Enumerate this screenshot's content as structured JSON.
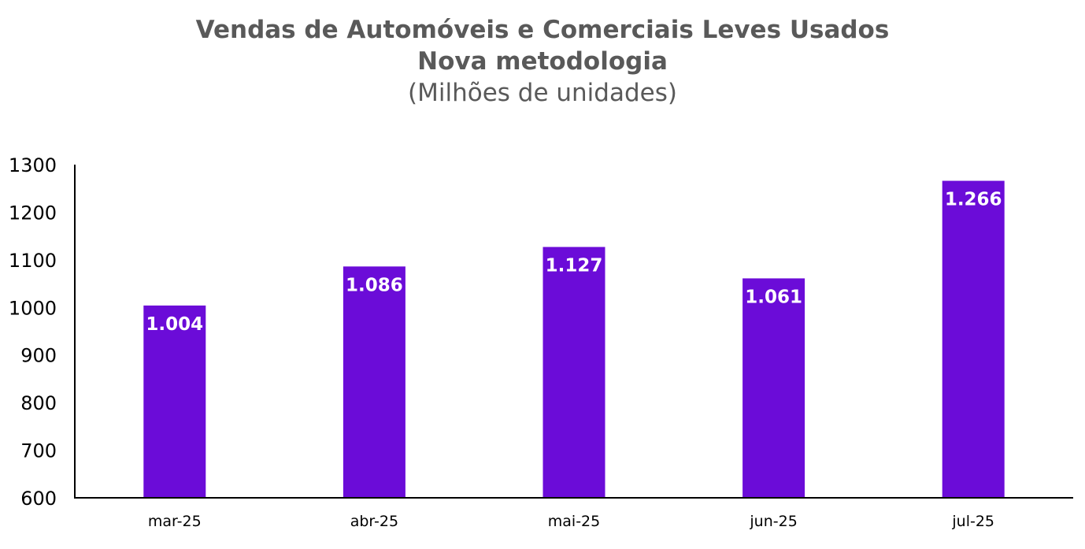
{
  "chart_data": {
    "type": "bar",
    "title": "Vendas de Automóveis e Comerciais Leves Usados",
    "subtitle": "Nova metodologia",
    "unit_label": "(Milhões de unidades)",
    "xlabel": "",
    "ylabel": "",
    "categories": [
      "mar-25",
      "abr-25",
      "mai-25",
      "jun-25",
      "jul-25"
    ],
    "values": [
      1004,
      1086,
      1127,
      1061,
      1266
    ],
    "data_labels": [
      "1.004",
      "1.086",
      "1.127",
      "1.061",
      "1.266"
    ],
    "ylim": [
      600,
      1300
    ],
    "yticks": [
      "600",
      "700",
      "800",
      "900",
      "1000",
      "1100",
      "1200",
      "1300"
    ],
    "grid": false,
    "bar_color": "#6B0CD8"
  }
}
